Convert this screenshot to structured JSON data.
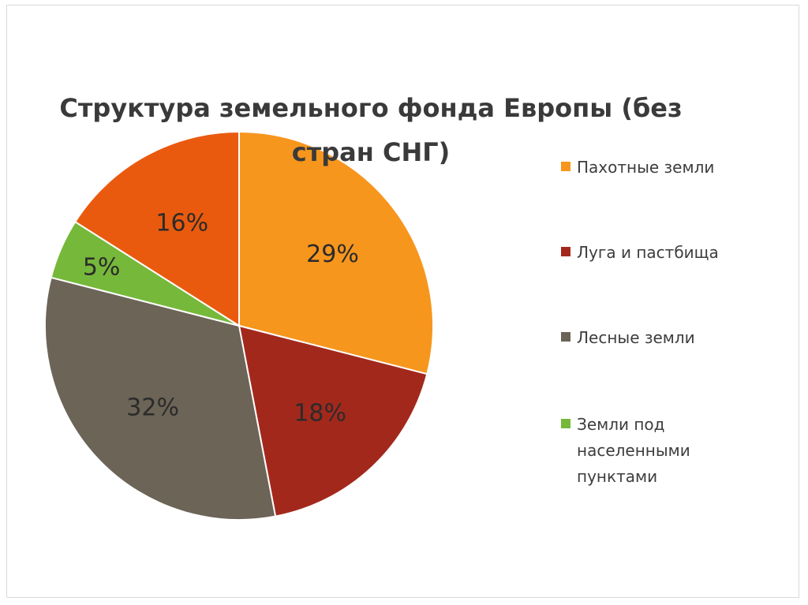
{
  "chart_data": {
    "type": "pie",
    "title": "Структура земельного фонда Европы (без стран СНГ)",
    "title_lines": [
      "Структура земельного фонда Европы (без",
      "стран СНГ)"
    ],
    "unit": "%",
    "legend_position": "right",
    "slices": [
      {
        "label": "Пахотные земли",
        "value": 29,
        "value_label": "29%",
        "color": "#f7961d"
      },
      {
        "label": "Луга и пастбища",
        "value": 18,
        "value_label": "18%",
        "color": "#a3281c"
      },
      {
        "label": "Лесные земли",
        "value": 32,
        "value_label": "32%",
        "color": "#6b6457"
      },
      {
        "label": "Земли под населенными пунктами",
        "value": 5,
        "value_label": "5%",
        "color": "#76b83a"
      },
      {
        "label": "",
        "value": 16,
        "value_label": "16%",
        "color": "#ea5a0e"
      }
    ],
    "legend": [
      {
        "lines": [
          "Пахотные земли"
        ],
        "color": "#f7961d"
      },
      {
        "lines": [
          "Луга и пастбища"
        ],
        "color": "#a3281c"
      },
      {
        "lines": [
          "Лесные земли"
        ],
        "color": "#6b6457"
      },
      {
        "lines": [
          "Земли под",
          "населенными",
          "пунктами"
        ],
        "color": "#76b83a"
      }
    ]
  }
}
